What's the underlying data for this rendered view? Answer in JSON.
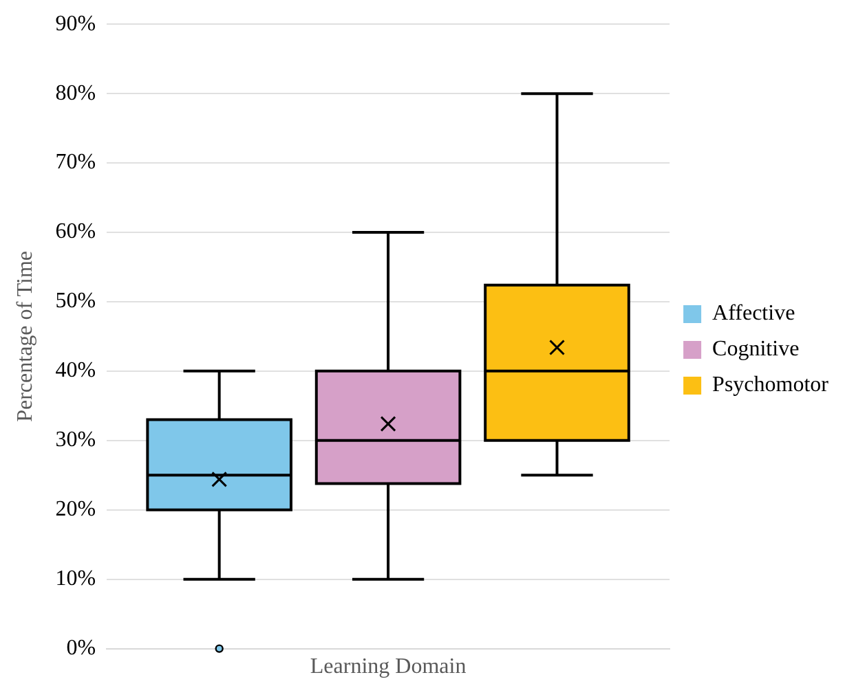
{
  "chart_data": {
    "type": "box",
    "xlabel": "Learning Domain",
    "ylabel": "Percentage of Time",
    "categories": [
      null
    ],
    "series": [
      {
        "name": "Affective",
        "color": "#7fc7ea",
        "boxes": [
          {
            "low": 10,
            "q1": 20,
            "median": 25,
            "q3": 33,
            "high": 40,
            "mean": 24.4,
            "outliers": [
              0
            ]
          }
        ]
      },
      {
        "name": "Cognitive",
        "color": "#d6a0c8",
        "boxes": [
          {
            "low": 10,
            "q1": 23.8,
            "median": 30,
            "q3": 40,
            "high": 60,
            "mean": 32.4
          }
        ]
      },
      {
        "name": "Psychomotor",
        "color": "#fcbf13",
        "boxes": [
          {
            "low": 25,
            "q1": 30,
            "median": 40,
            "q3": 52.4,
            "high": 80,
            "mean": 43.4
          }
        ]
      }
    ],
    "ylim": [
      0,
      90
    ],
    "yticks": [
      {
        "value": 0,
        "label": "0%"
      },
      {
        "value": 10,
        "label": "10%"
      },
      {
        "value": 20,
        "label": "20%"
      },
      {
        "value": 30,
        "label": "30%"
      },
      {
        "value": 40,
        "label": "40%"
      },
      {
        "value": 50,
        "label": "50%"
      },
      {
        "value": 60,
        "label": "60%"
      },
      {
        "value": 70,
        "label": "70%"
      },
      {
        "value": 80,
        "label": "80%"
      },
      {
        "value": 90,
        "label": "90%"
      }
    ],
    "grid": "y",
    "legend": "right",
    "marker": "cross"
  }
}
